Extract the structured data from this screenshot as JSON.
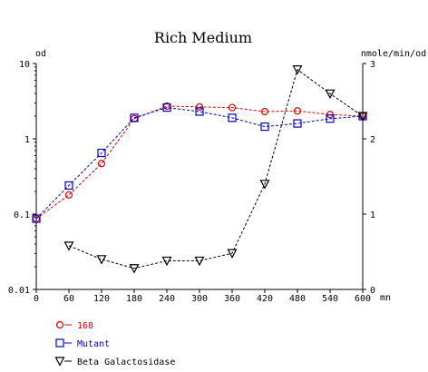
{
  "chart_data": {
    "type": "line",
    "title": "Rich Medium",
    "xlabel": "mn",
    "ylabel_left": "od",
    "ylabel_right": "nmole/min/od",
    "xlim": [
      0,
      600
    ],
    "ylim_left": [
      0.01,
      10
    ],
    "ylim_right": [
      0,
      3
    ],
    "left_scale": "log",
    "right_scale": "linear",
    "grid": false,
    "legend_position": "bottom-left",
    "x_ticks": [
      "0",
      "60",
      "120",
      "180",
      "240",
      "300",
      "360",
      "420",
      "480",
      "540",
      "600"
    ],
    "y_left_ticks": [
      "0.01",
      "0.1",
      "1",
      "10"
    ],
    "y_right_ticks": [
      "0",
      "1",
      "2",
      "3"
    ],
    "series": [
      {
        "name": "168",
        "axis": "left",
        "marker": "circle",
        "color": "#dd0000",
        "x": [
          0,
          60,
          120,
          180,
          240,
          300,
          360,
          420,
          480,
          540,
          600
        ],
        "values": [
          0.087,
          0.18,
          0.47,
          1.85,
          2.72,
          2.65,
          2.6,
          2.3,
          2.35,
          2.1,
          2.0
        ]
      },
      {
        "name": "Mutant",
        "axis": "left",
        "marker": "square",
        "color": "#0000cc",
        "x": [
          0,
          60,
          120,
          180,
          240,
          300,
          360,
          420,
          480,
          540,
          600
        ],
        "values": [
          0.087,
          0.24,
          0.65,
          1.9,
          2.6,
          2.3,
          1.9,
          1.45,
          1.6,
          1.85,
          2.0
        ]
      },
      {
        "name": "Beta Galactosidase",
        "axis": "right",
        "marker": "triangle-down",
        "color": "#000000",
        "x": [
          60,
          120,
          180,
          240,
          300,
          360,
          420,
          480,
          540,
          600
        ],
        "values": [
          0.58,
          0.4,
          0.28,
          0.38,
          0.38,
          0.48,
          1.4,
          2.92,
          2.6,
          2.3
        ]
      }
    ]
  }
}
